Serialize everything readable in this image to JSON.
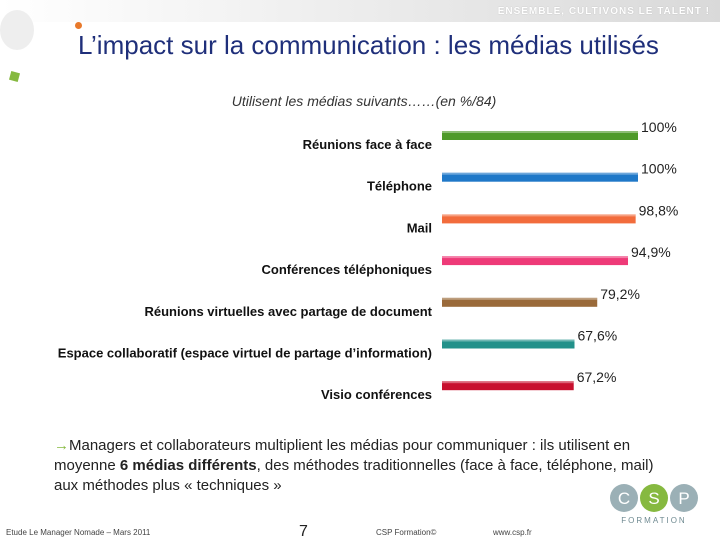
{
  "header": {
    "slogan": "ENSEMBLE, CULTIVONS LE TALENT !"
  },
  "title": "L’impact sur la communication : les médias utilisés",
  "subtitle": "Utilisent les médias suivants……(en %/84)",
  "colors": {
    "title": "#1f2f7a",
    "accent_green": "#86b940",
    "accent_orange": "#e8792b"
  },
  "chart_data": {
    "type": "bar",
    "orientation": "horizontal",
    "title": "Utilisent les médias suivants……(en %/84)",
    "xlabel": "",
    "ylabel": "",
    "xlim": [
      0,
      100
    ],
    "categories": [
      "Réunions face à face",
      "Téléphone",
      "Mail",
      "Conférences téléphoniques",
      "Réunions virtuelles avec partage de document",
      "Espace collaboratif (espace virtuel de partage d’information)",
      "Visio conférences"
    ],
    "values": [
      100,
      100,
      98.8,
      94.9,
      79.2,
      67.6,
      67.2
    ],
    "value_labels": [
      "100%",
      "100%",
      "98,8%",
      "94,9%",
      "79,2%",
      "67,6%",
      "67,2%"
    ],
    "bar_colors": [
      "#4e9a2a",
      "#1f78c8",
      "#f26c3c",
      "#ee3a78",
      "#9a6a3a",
      "#22918a",
      "#c8102e"
    ]
  },
  "note": {
    "part1": "Managers et collaborateurs multiplient les médias pour communiquer : ils utilisent en moyenne ",
    "bold": "6 médias différents",
    "part2": ", des méthodes traditionnelles (face à face, téléphone, mail) aux méthodes plus « techniques »"
  },
  "footer": {
    "study": "Etude Le Manager Nomade – Mars 2011",
    "page": "7",
    "copyright": "CSP Formation©",
    "url": "www.csp.fr"
  },
  "logo": {
    "letters": [
      "C",
      "S",
      "P"
    ],
    "subtext": "FORMATION"
  }
}
